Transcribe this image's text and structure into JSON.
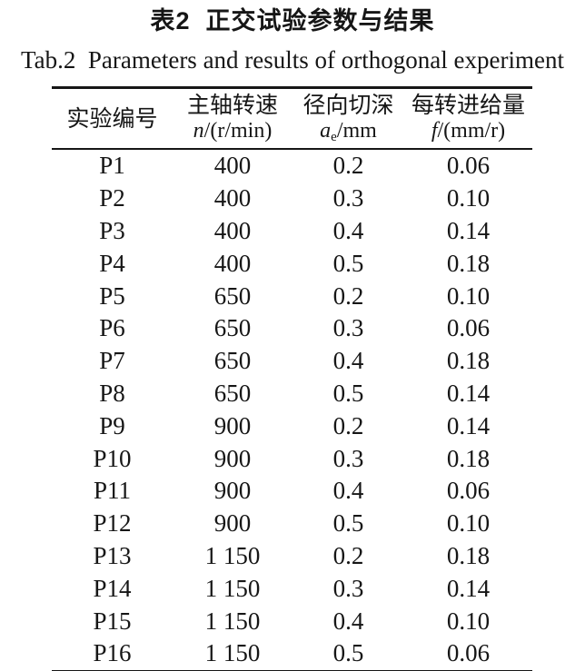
{
  "caption": {
    "title_cn": "表2  正交试验参数与结果",
    "title_en": "Tab.2  Parameters and results of orthogonal experiment"
  },
  "table": {
    "columns": [
      {
        "label_cn": "实验编号",
        "symbol": "",
        "sub": "",
        "unit": ""
      },
      {
        "label_cn": "主轴转速",
        "symbol": "n",
        "sub": "",
        "unit": "/(r/min)"
      },
      {
        "label_cn": "径向切深",
        "symbol": "a",
        "sub": "e",
        "unit": "/mm"
      },
      {
        "label_cn": "每转进给量",
        "symbol": "f",
        "sub": "",
        "unit": "/(mm/r)"
      }
    ],
    "rows": [
      [
        "P1",
        "400",
        "0.2",
        "0.06"
      ],
      [
        "P2",
        "400",
        "0.3",
        "0.10"
      ],
      [
        "P3",
        "400",
        "0.4",
        "0.14"
      ],
      [
        "P4",
        "400",
        "0.5",
        "0.18"
      ],
      [
        "P5",
        "650",
        "0.2",
        "0.10"
      ],
      [
        "P6",
        "650",
        "0.3",
        "0.06"
      ],
      [
        "P7",
        "650",
        "0.4",
        "0.18"
      ],
      [
        "P8",
        "650",
        "0.5",
        "0.14"
      ],
      [
        "P9",
        "900",
        "0.2",
        "0.14"
      ],
      [
        "P10",
        "900",
        "0.3",
        "0.18"
      ],
      [
        "P11",
        "900",
        "0.4",
        "0.06"
      ],
      [
        "P12",
        "900",
        "0.5",
        "0.10"
      ],
      [
        "P13",
        "1 150",
        "0.2",
        "0.18"
      ],
      [
        "P14",
        "1 150",
        "0.3",
        "0.14"
      ],
      [
        "P15",
        "1 150",
        "0.4",
        "0.10"
      ],
      [
        "P16",
        "1 150",
        "0.5",
        "0.06"
      ]
    ]
  },
  "colors": {
    "text": "#161616",
    "rule": "#161616",
    "page_background": "#ffffff"
  }
}
